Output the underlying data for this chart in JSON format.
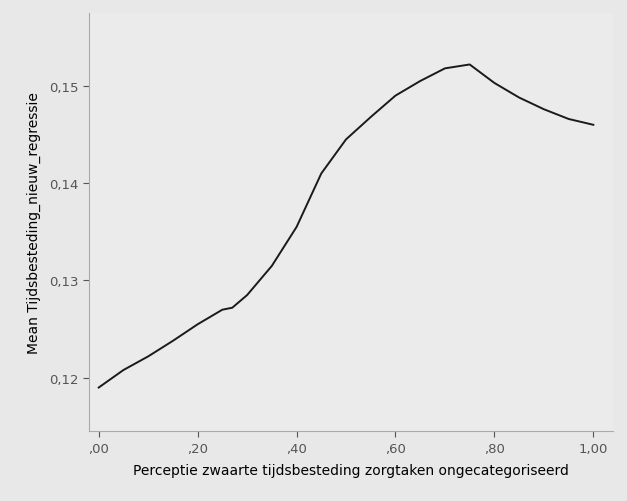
{
  "x": [
    0.0,
    0.05,
    0.1,
    0.15,
    0.2,
    0.25,
    0.27,
    0.3,
    0.35,
    0.4,
    0.45,
    0.5,
    0.55,
    0.6,
    0.65,
    0.7,
    0.75,
    0.8,
    0.85,
    0.9,
    0.95,
    1.0
  ],
  "y": [
    0.119,
    0.1208,
    0.1222,
    0.1238,
    0.1255,
    0.127,
    0.1272,
    0.1285,
    0.1315,
    0.1355,
    0.141,
    0.1445,
    0.1468,
    0.149,
    0.1505,
    0.1518,
    0.1522,
    0.1503,
    0.1488,
    0.1476,
    0.1466,
    0.146
  ],
  "line_color": "#1a1a1a",
  "line_width": 1.4,
  "fig_bg_color": "#e8e8e8",
  "plot_bg_color": "#ebebeb",
  "xlabel": "Perceptie zwaarte tijdsbesteding zorgtaken ongecategoriseerd",
  "ylabel": "Mean Tijdsbesteding_nieuw_regressie",
  "xlabel_fontsize": 10,
  "ylabel_fontsize": 10,
  "tick_fontsize": 9.5,
  "xlim": [
    -0.02,
    1.04
  ],
  "ylim": [
    0.1145,
    0.1575
  ],
  "xticks": [
    0.0,
    0.2,
    0.4,
    0.6,
    0.8,
    1.0
  ],
  "yticks": [
    0.12,
    0.13,
    0.14,
    0.15
  ],
  "xtick_labels": [
    ",00",
    ",20",
    ",40",
    ",60",
    ",80",
    "1,00"
  ],
  "ytick_labels": [
    "0,12",
    "0,13",
    "0,14",
    "0,15"
  ]
}
